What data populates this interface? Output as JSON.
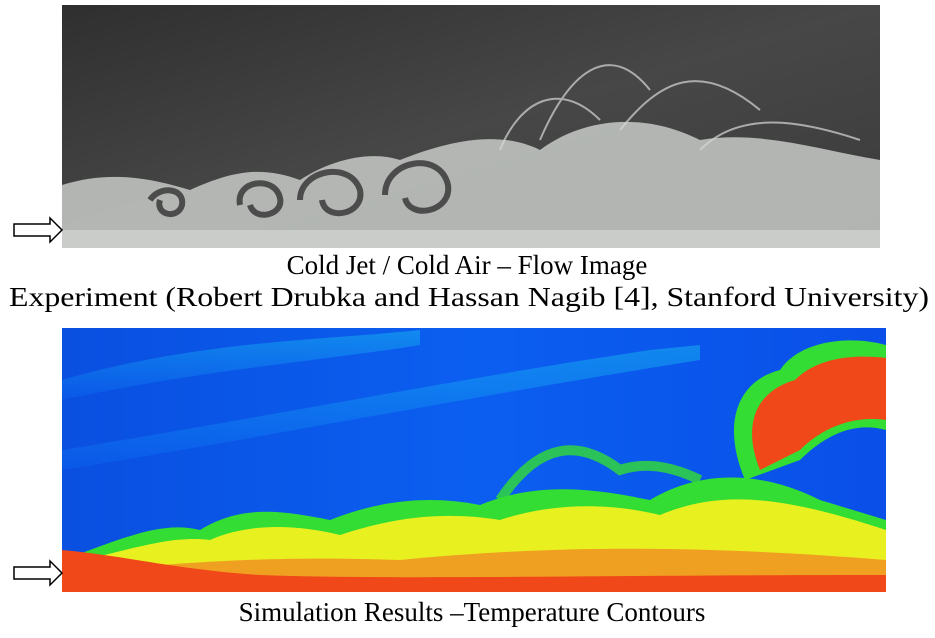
{
  "figure": {
    "top_image_caption": "Cold Jet / Cold Air – Flow Image",
    "top_image_credit": "Experiment (Robert Drubka and Hassan Nagib [4], Stanford University)",
    "bottom_image_caption": "Simulation Results –Temperature Contours"
  }
}
